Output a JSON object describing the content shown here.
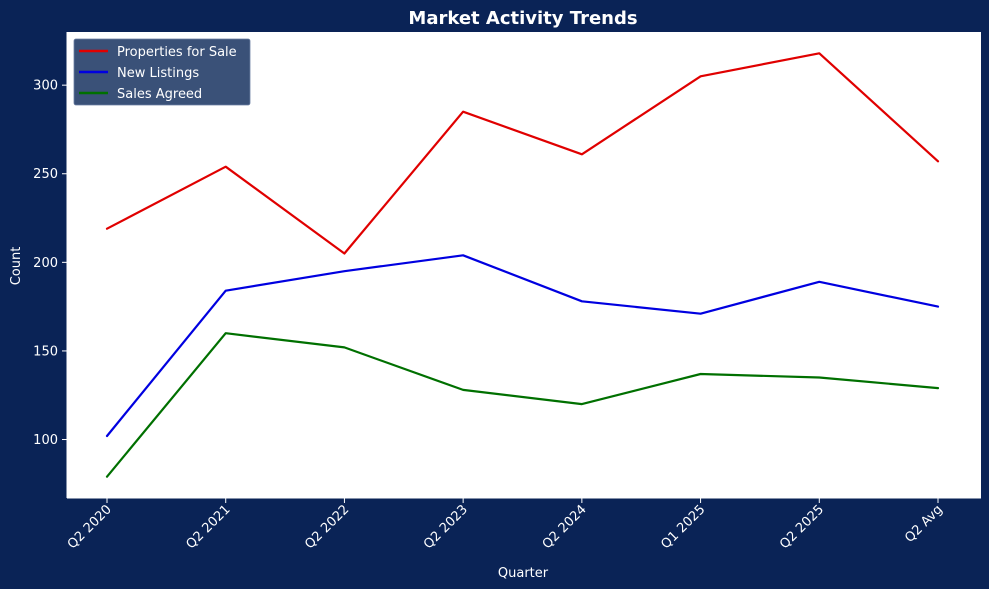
{
  "chart_data": {
    "type": "line",
    "title": "Market Activity Trends",
    "xlabel": "Quarter",
    "ylabel": "Count",
    "categories": [
      "Q2 2020",
      "Q2 2021",
      "Q2 2022",
      "Q2 2023",
      "Q2 2024",
      "Q1 2025",
      "Q2 2025",
      "Q2 Avg"
    ],
    "ylim": [
      67,
      330
    ],
    "yticks": [
      100,
      150,
      200,
      250,
      300
    ],
    "grid": false,
    "legend_position": "top-left",
    "series": [
      {
        "name": "Properties for Sale",
        "color": "#e00000",
        "values": [
          219,
          254,
          205,
          285,
          261,
          305,
          318,
          257
        ]
      },
      {
        "name": "New Listings",
        "color": "#0000e0",
        "values": [
          102,
          184,
          195,
          204,
          178,
          171,
          189,
          175
        ]
      },
      {
        "name": "Sales Agreed",
        "color": "#007000",
        "values": [
          79,
          160,
          152,
          128,
          120,
          137,
          135,
          129
        ]
      }
    ],
    "colors": {
      "background": "#0a2356",
      "plot_background": "#ffffff",
      "text": "#ffffff",
      "legend_background": "#3a5178"
    }
  }
}
